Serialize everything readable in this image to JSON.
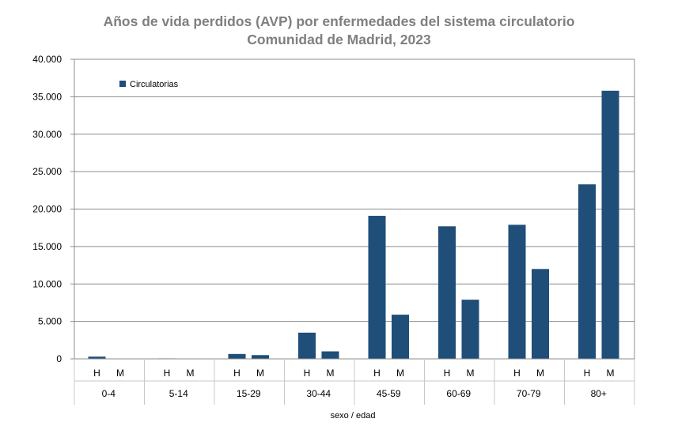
{
  "chart_data": {
    "type": "bar",
    "title": "Años de vida perdidos (AVP) por enfermedades del sistema circulatorio",
    "subtitle": "Comunidad de Madrid, 2023",
    "xlabel": "sexo / edad",
    "ylabel": "",
    "ylim": [
      0,
      40000
    ],
    "yticks": [
      "0",
      "5.000",
      "10.000",
      "15.000",
      "20.000",
      "25.000",
      "30.000",
      "35.000",
      "40.000"
    ],
    "grid": true,
    "legend_position": "top-left",
    "groups": [
      "0-4",
      "5-14",
      "15-29",
      "30-44",
      "45-59",
      "60-69",
      "70-79",
      "80+"
    ],
    "sexes": [
      "H",
      "M"
    ],
    "series": [
      {
        "name": "Circulatorias",
        "color": "#1f4e79",
        "values": [
          [
            300,
            0
          ],
          [
            60,
            0
          ],
          [
            650,
            500
          ],
          [
            3500,
            1000
          ],
          [
            19100,
            5900
          ],
          [
            17700,
            7900
          ],
          [
            17900,
            12000
          ],
          [
            23300,
            35800
          ]
        ]
      }
    ]
  }
}
